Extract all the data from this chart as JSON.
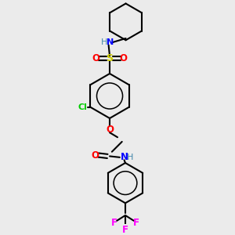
{
  "background_color": "#ebebeb",
  "colors": {
    "C": "#000000",
    "N": "#0000ff",
    "O": "#ff0000",
    "S": "#cccc00",
    "Cl": "#00cc00",
    "F": "#ff00ff",
    "H": "#4488aa"
  },
  "lw": 1.5
}
